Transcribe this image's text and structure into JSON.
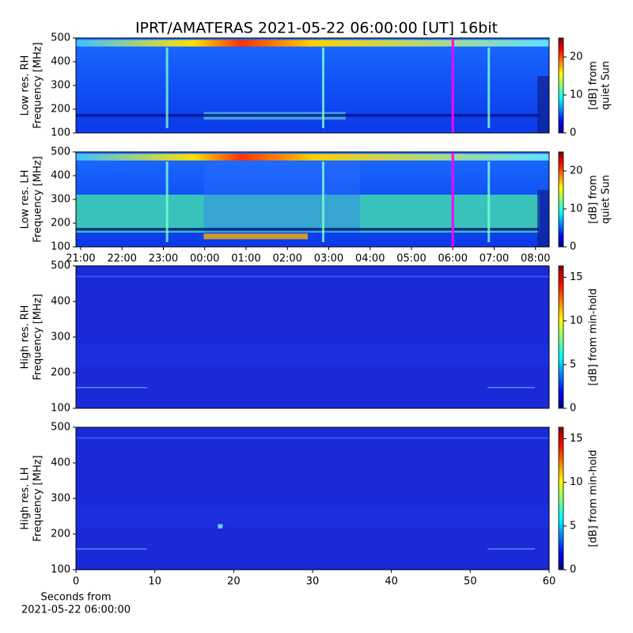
{
  "chart_data": [
    {
      "type": "heatmap",
      "title": "IPRT/AMATERAS 2021-05-22 06:00:00 [UT]   16bit",
      "ylabel": [
        "Low res. RH",
        "Frequency [MHz]"
      ],
      "xlim": [
        20.886,
        32.33
      ],
      "ylim": [
        100,
        500
      ],
      "yticks": [
        100,
        200,
        300,
        400,
        500
      ],
      "marker_x": 30,
      "marker_color": "#ff00ff",
      "colorbar": {
        "label": [
          "[dB] from",
          "quiet Sun"
        ],
        "lim": [
          0,
          25
        ],
        "ticks": [
          0,
          10,
          20
        ]
      }
    },
    {
      "type": "heatmap",
      "ylabel": [
        "Low res. LH",
        "Frequency [MHz]"
      ],
      "xlim": [
        20.886,
        32.33
      ],
      "ylim": [
        100,
        500
      ],
      "yticks": [
        100,
        200,
        300,
        400,
        500
      ],
      "xticks": [
        {
          "value": 21,
          "label": "21:00"
        },
        {
          "value": 22,
          "label": "22:00"
        },
        {
          "value": 23,
          "label": "23:00"
        },
        {
          "value": 24,
          "label": "00:00"
        },
        {
          "value": 25,
          "label": "01:00"
        },
        {
          "value": 26,
          "label": "02:00"
        },
        {
          "value": 27,
          "label": "03:00"
        },
        {
          "value": 28,
          "label": "04:00"
        },
        {
          "value": 29,
          "label": "05:00"
        },
        {
          "value": 30,
          "label": "06:00"
        },
        {
          "value": 31,
          "label": "07:00"
        },
        {
          "value": 32,
          "label": "08:00"
        }
      ],
      "marker_x": 30,
      "marker_color": "#ff00ff",
      "colorbar": {
        "label": [
          "[dB] from",
          "quiet Sun"
        ],
        "lim": [
          0,
          25
        ],
        "ticks": [
          0,
          10,
          20
        ]
      }
    },
    {
      "type": "heatmap",
      "ylabel": [
        "High res. RH",
        "Frequency [MHz]"
      ],
      "xlim": [
        0,
        60
      ],
      "ylim": [
        100,
        500
      ],
      "yticks": [
        100,
        200,
        300,
        400,
        500
      ],
      "colorbar": {
        "label": [
          "[dB] from min-hold"
        ],
        "lim": [
          0,
          16.3
        ],
        "ticks": [
          0,
          5,
          10,
          15
        ]
      }
    },
    {
      "type": "heatmap",
      "ylabel": [
        "High res. LH",
        "Frequency [MHz]"
      ],
      "xlabel": [
        "Seconds from",
        "2021-05-22 06:00:00"
      ],
      "xlim": [
        0,
        60
      ],
      "ylim": [
        100,
        500
      ],
      "yticks": [
        100,
        200,
        300,
        400,
        500
      ],
      "xticks": [
        0,
        10,
        20,
        30,
        40,
        50,
        60
      ],
      "colorbar": {
        "label": [
          "[dB] from min-hold"
        ],
        "lim": [
          0,
          16.3
        ],
        "ticks": [
          0,
          5,
          10,
          15
        ]
      }
    }
  ]
}
